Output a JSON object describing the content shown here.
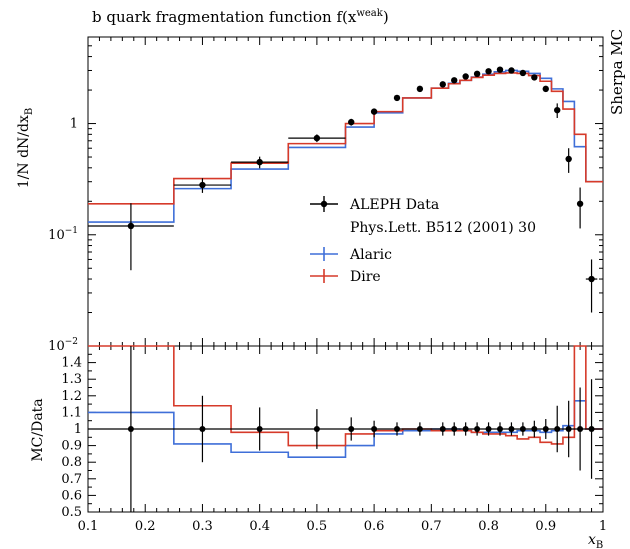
{
  "header": {
    "title": "b quark fragmentation function f(x",
    "title_sub": "B",
    "title_sup": "weak",
    "title_close": ")",
    "side_label": "Sherpa MC"
  },
  "colors": {
    "data": "#000000",
    "alaric": "#3f6fd8",
    "dire": "#d63a2a",
    "frame": "#000000"
  },
  "chart_data": [
    {
      "type": "line",
      "panel": "main",
      "yscale": "log",
      "ylabel": "1/N dN/dx",
      "ylabel_sub": "B",
      "xlim": [
        0.1,
        1.0
      ],
      "ylim": [
        0.01,
        6.0
      ],
      "y_tick_labels": [
        "1",
        "10",
        "10"
      ],
      "y_tick_exponents": [
        "",
        "−1",
        "−2"
      ],
      "legend": {
        "position": "center-right",
        "entries": [
          "ALEPH Data",
          "Phys.Lett. B512 (2001) 30",
          "Alaric",
          "Dire"
        ]
      },
      "data_points": {
        "name": "ALEPH Data",
        "x": [
          0.175,
          0.3,
          0.4,
          0.5,
          0.56,
          0.6,
          0.64,
          0.68,
          0.72,
          0.74,
          0.76,
          0.78,
          0.8,
          0.82,
          0.84,
          0.86,
          0.88,
          0.9,
          0.92,
          0.94,
          0.96,
          0.98
        ],
        "y": [
          0.12,
          0.28,
          0.45,
          0.74,
          1.03,
          1.28,
          1.7,
          2.05,
          2.25,
          2.45,
          2.65,
          2.8,
          2.95,
          3.05,
          3.0,
          2.85,
          2.6,
          2.05,
          1.32,
          0.48,
          0.19,
          0.04
        ],
        "yerr_rel": [
          0.6,
          0.15,
          0.12,
          0.08,
          0.07,
          0.05,
          0.04,
          0.04,
          0.04,
          0.04,
          0.04,
          0.04,
          0.04,
          0.04,
          0.04,
          0.04,
          0.05,
          0.06,
          0.15,
          0.25,
          0.4,
          0.5
        ],
        "xerr": [
          0.075,
          0.05,
          0.05,
          0.05,
          0.0,
          0.0,
          0.0,
          0.0,
          0.0,
          0.0,
          0.0,
          0.0,
          0.0,
          0.0,
          0.0,
          0.0,
          0.0,
          0.0,
          0.0,
          0.0,
          0.0,
          0.01
        ]
      },
      "series": [
        {
          "name": "Alaric",
          "edges": [
            0.1,
            0.25,
            0.35,
            0.45,
            0.55,
            0.6,
            0.65,
            0.7,
            0.73,
            0.75,
            0.77,
            0.79,
            0.81,
            0.83,
            0.85,
            0.87,
            0.89,
            0.91,
            0.93,
            0.95,
            0.97,
            1.0
          ],
          "values": [
            0.13,
            0.26,
            0.39,
            0.61,
            0.93,
            1.25,
            1.7,
            2.08,
            2.3,
            2.45,
            2.62,
            2.78,
            2.92,
            3.0,
            2.95,
            2.82,
            2.55,
            2.05,
            1.58,
            0.62,
            0.3
          ]
        },
        {
          "name": "Dire",
          "edges": [
            0.1,
            0.25,
            0.35,
            0.45,
            0.55,
            0.6,
            0.65,
            0.7,
            0.73,
            0.75,
            0.77,
            0.79,
            0.81,
            0.83,
            0.85,
            0.87,
            0.89,
            0.91,
            0.93,
            0.95,
            0.97,
            1.0
          ],
          "values": [
            0.19,
            0.32,
            0.44,
            0.66,
            1.0,
            1.28,
            1.7,
            2.08,
            2.28,
            2.45,
            2.6,
            2.72,
            2.82,
            2.85,
            2.82,
            2.7,
            2.4,
            1.95,
            1.35,
            0.8,
            0.3
          ]
        }
      ]
    },
    {
      "type": "line",
      "panel": "ratio",
      "ylabel": "MC/Data",
      "xlabel": "x",
      "xlabel_sub": "B",
      "xlim": [
        0.1,
        1.0
      ],
      "ylim": [
        0.5,
        1.5
      ],
      "x_tick_labels": [
        "0.1",
        "0.2",
        "0.3",
        "0.4",
        "0.5",
        "0.6",
        "0.7",
        "0.8",
        "0.9",
        "1"
      ],
      "x_ticks": [
        0.1,
        0.2,
        0.3,
        0.4,
        0.5,
        0.6,
        0.7,
        0.8,
        0.9,
        1.0
      ],
      "y_tick_labels": [
        "0.5",
        "0.6",
        "0.7",
        "0.8",
        "0.9",
        "1",
        "1.1",
        "1.2",
        "1.3",
        "1.4"
      ],
      "y_ticks": [
        0.5,
        0.6,
        0.7,
        0.8,
        0.9,
        1.0,
        1.1,
        1.2,
        1.3,
        1.4
      ],
      "data_points": {
        "x": [
          0.175,
          0.3,
          0.4,
          0.5,
          0.56,
          0.6,
          0.64,
          0.68,
          0.72,
          0.74,
          0.76,
          0.78,
          0.8,
          0.82,
          0.84,
          0.86,
          0.88,
          0.9,
          0.92,
          0.94,
          0.96,
          0.98
        ],
        "y": [
          1,
          1,
          1,
          1,
          1,
          1,
          1,
          1,
          1,
          1,
          1,
          1,
          1,
          1,
          1,
          1,
          1,
          1,
          1,
          1,
          1,
          1
        ],
        "yerr": [
          0.6,
          0.2,
          0.13,
          0.12,
          0.07,
          0.05,
          0.04,
          0.04,
          0.04,
          0.04,
          0.04,
          0.04,
          0.04,
          0.04,
          0.04,
          0.04,
          0.05,
          0.06,
          0.14,
          0.17,
          0.25,
          0.3
        ]
      },
      "series": [
        {
          "name": "Alaric",
          "edges": [
            0.1,
            0.25,
            0.35,
            0.45,
            0.55,
            0.6,
            0.65,
            0.7,
            0.73,
            0.75,
            0.77,
            0.79,
            0.81,
            0.83,
            0.85,
            0.87,
            0.89,
            0.91,
            0.93,
            0.95,
            0.97,
            1.0
          ],
          "values": [
            1.1,
            0.91,
            0.86,
            0.83,
            0.9,
            0.97,
            0.99,
            1.0,
            1.0,
            0.99,
            0.98,
            0.98,
            0.98,
            0.98,
            0.99,
            0.99,
            0.98,
            0.99,
            1.02,
            1.17,
            1.0
          ]
        },
        {
          "name": "Dire",
          "edges": [
            0.1,
            0.25,
            0.35,
            0.45,
            0.55,
            0.6,
            0.65,
            0.7,
            0.73,
            0.75,
            0.77,
            0.79,
            0.81,
            0.83,
            0.85,
            0.87,
            0.89,
            0.91,
            0.93,
            0.95,
            0.97,
            1.0
          ],
          "values": [
            1.5,
            1.14,
            0.98,
            0.9,
            0.97,
            0.99,
            1.0,
            0.99,
            0.99,
            0.99,
            0.98,
            0.97,
            0.97,
            0.96,
            0.94,
            0.95,
            0.92,
            0.91,
            0.95,
            1.5,
            1.0
          ]
        }
      ]
    }
  ]
}
